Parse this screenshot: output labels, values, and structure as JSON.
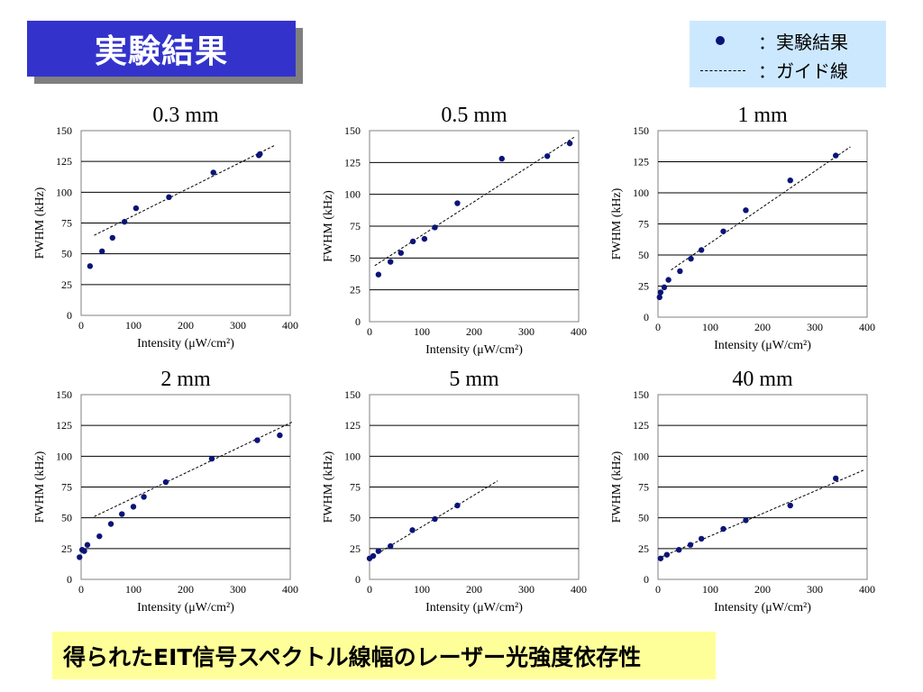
{
  "header": {
    "title": "実験結果"
  },
  "legend": {
    "points_label": "：実験結果",
    "guide_label": "：ガイド線"
  },
  "caption": "得られたEIT信号スペクトル線幅のレーザー光強度依存性",
  "colors": {
    "title_bg": "#3333cc",
    "legend_bg": "#cce8ff",
    "caption_bg": "#ffff99",
    "marker": "#0a1478"
  },
  "chart_data": [
    {
      "type": "scatter",
      "title": "0.3 mm",
      "xlabel": "Intensity (μW/cm²)",
      "ylabel": "FWHM (kHz)",
      "xlim": [
        0,
        400
      ],
      "ylim": [
        0,
        150
      ],
      "xticks": [
        "0",
        "100",
        "200",
        "300",
        "400"
      ],
      "yticks": [
        "0",
        "25",
        "50",
        "75",
        "100",
        "125",
        "150"
      ],
      "grid": "horizontal",
      "points": [
        [
          17,
          40
        ],
        [
          40,
          52
        ],
        [
          60,
          63
        ],
        [
          83,
          76
        ],
        [
          105,
          87
        ],
        [
          168,
          96
        ],
        [
          253,
          116
        ],
        [
          340,
          130
        ],
        [
          342,
          131
        ]
      ],
      "guide": [
        [
          25,
          65
        ],
        [
          370,
          138
        ]
      ]
    },
    {
      "type": "scatter",
      "title": "0.5 mm",
      "xlabel": "Intensity (μW/cm²)",
      "ylabel": "FWHM (kHz)",
      "xlim": [
        0,
        400
      ],
      "ylim": [
        0,
        150
      ],
      "xticks": [
        "0",
        "100",
        "200",
        "300",
        "400"
      ],
      "yticks": [
        "0",
        "25",
        "50",
        "75",
        "100",
        "125",
        "150"
      ],
      "grid": "horizontal",
      "points": [
        [
          17,
          37
        ],
        [
          40,
          47
        ],
        [
          60,
          54
        ],
        [
          83,
          63
        ],
        [
          105,
          65
        ],
        [
          125,
          74
        ],
        [
          168,
          93
        ],
        [
          253,
          128
        ],
        [
          340,
          130
        ],
        [
          383,
          140
        ]
      ],
      "guide": [
        [
          10,
          44
        ],
        [
          392,
          145
        ]
      ]
    },
    {
      "type": "scatter",
      "title": "1 mm",
      "xlabel": "Intensity (μW/cm²)",
      "ylabel": "FWHM (kHz)",
      "xlim": [
        0,
        400
      ],
      "ylim": [
        0,
        150
      ],
      "xticks": [
        "0",
        "100",
        "200",
        "300",
        "400"
      ],
      "yticks": [
        "0",
        "25",
        "50",
        "75",
        "100",
        "125",
        "150"
      ],
      "grid": "horizontal",
      "points": [
        [
          3,
          16
        ],
        [
          5,
          20
        ],
        [
          12,
          24
        ],
        [
          20,
          30
        ],
        [
          42,
          37
        ],
        [
          63,
          47
        ],
        [
          83,
          54
        ],
        [
          125,
          69
        ],
        [
          168,
          86
        ],
        [
          253,
          110
        ],
        [
          340,
          130
        ]
      ],
      "guide": [
        [
          25,
          38
        ],
        [
          368,
          137
        ]
      ]
    },
    {
      "type": "scatter",
      "title": "2 mm",
      "xlabel": "Intensity (μW/cm²)",
      "ylabel": "FWHM (kHz)",
      "xlim": [
        0,
        400
      ],
      "ylim": [
        0,
        150
      ],
      "xticks": [
        "0",
        "100",
        "200",
        "300",
        "400"
      ],
      "yticks": [
        "0",
        "25",
        "50",
        "75",
        "100",
        "125",
        "150"
      ],
      "grid": "horizontal",
      "points": [
        [
          -3,
          18
        ],
        [
          2,
          24
        ],
        [
          6,
          23
        ],
        [
          12,
          28
        ],
        [
          35,
          35
        ],
        [
          57,
          45
        ],
        [
          78,
          53
        ],
        [
          100,
          59
        ],
        [
          120,
          67
        ],
        [
          162,
          79
        ],
        [
          250,
          98
        ],
        [
          337,
          113
        ],
        [
          380,
          117
        ]
      ],
      "guide": [
        [
          25,
          51
        ],
        [
          405,
          128
        ]
      ]
    },
    {
      "type": "scatter",
      "title": "5 mm",
      "xlabel": "Intensity (μW/cm²)",
      "ylabel": "FWHM (kHz)",
      "xlim": [
        0,
        400
      ],
      "ylim": [
        0,
        150
      ],
      "xticks": [
        "0",
        "100",
        "200",
        "300",
        "400"
      ],
      "yticks": [
        "0",
        "25",
        "50",
        "75",
        "100",
        "125",
        "150"
      ],
      "grid": "horizontal",
      "points": [
        [
          0,
          17
        ],
        [
          7,
          19
        ],
        [
          17,
          23
        ],
        [
          40,
          27
        ],
        [
          82,
          40
        ],
        [
          125,
          49
        ],
        [
          168,
          60
        ]
      ],
      "guide": [
        [
          0,
          17
        ],
        [
          245,
          80
        ]
      ]
    },
    {
      "type": "scatter",
      "title": "40 mm",
      "xlabel": "Intensity (μW/cm²)",
      "ylabel": "FWHM (kHz)",
      "xlim": [
        0,
        400
      ],
      "ylim": [
        0,
        150
      ],
      "xticks": [
        "0",
        "100",
        "200",
        "300",
        "400"
      ],
      "yticks": [
        "0",
        "25",
        "50",
        "75",
        "100",
        "125",
        "150"
      ],
      "grid": "horizontal",
      "points": [
        [
          5,
          17
        ],
        [
          17,
          20
        ],
        [
          40,
          24
        ],
        [
          62,
          28
        ],
        [
          83,
          33
        ],
        [
          125,
          41
        ],
        [
          168,
          48
        ],
        [
          253,
          60
        ],
        [
          340,
          82
        ]
      ],
      "guide": [
        [
          0,
          17
        ],
        [
          395,
          89
        ]
      ]
    }
  ]
}
